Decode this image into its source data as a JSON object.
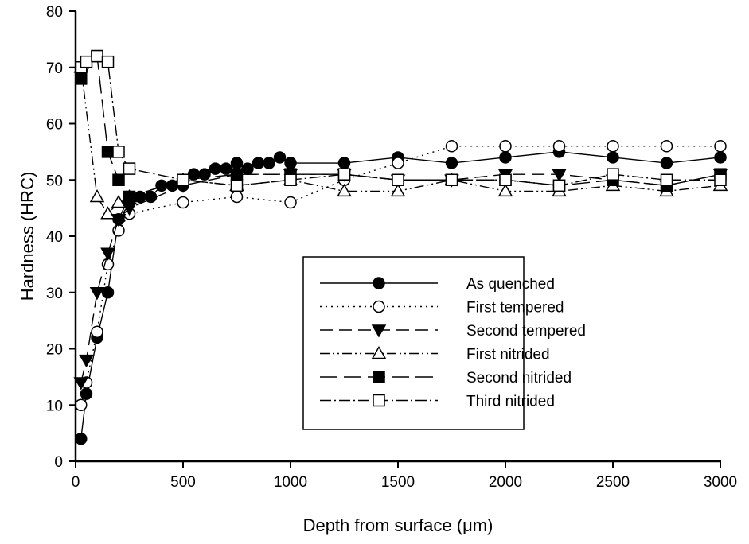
{
  "chart_data": {
    "type": "line",
    "title": "",
    "xlabel": "Depth from surface (μm)",
    "ylabel": "Hardness (HRC)",
    "xlim": [
      0,
      3000
    ],
    "ylim": [
      0,
      80
    ],
    "xticks": [
      0,
      500,
      1000,
      1500,
      2000,
      2500,
      3000
    ],
    "yticks": [
      0,
      10,
      20,
      30,
      40,
      50,
      60,
      70,
      80
    ],
    "grid": false,
    "legend_position": "center-right",
    "series": [
      {
        "name": "As quenched",
        "marker": "filled-circle",
        "dash": "",
        "x": [
          25,
          50,
          100,
          150,
          200,
          250,
          300,
          350,
          400,
          450,
          500,
          550,
          600,
          650,
          700,
          750,
          800,
          850,
          900,
          950,
          1000,
          1250,
          1500,
          1750,
          2000,
          2250,
          2500,
          2750,
          3000
        ],
        "y": [
          4,
          12,
          22,
          30,
          43,
          47,
          47,
          47,
          49,
          49,
          49,
          51,
          51,
          52,
          52,
          53,
          52,
          53,
          53,
          54,
          53,
          53,
          54,
          53,
          54,
          55,
          54,
          53,
          54
        ]
      },
      {
        "name": "First tempered",
        "marker": "open-circle",
        "dash": "2,5",
        "x": [
          25,
          50,
          100,
          150,
          200,
          250,
          500,
          750,
          1000,
          1250,
          1500,
          1750,
          2000,
          2250,
          2500,
          2750,
          3000
        ],
        "y": [
          10,
          14,
          23,
          35,
          41,
          44,
          46,
          47,
          46,
          50,
          53,
          56,
          56,
          56,
          56,
          56,
          56
        ]
      },
      {
        "name": "Second tempered",
        "marker": "filled-triangle-down",
        "dash": "16,8",
        "x": [
          25,
          50,
          100,
          150,
          200,
          250,
          500,
          750,
          1000,
          1250,
          1500,
          1750,
          2000,
          2250,
          2500,
          2750,
          3000
        ],
        "y": [
          14,
          18,
          30,
          37,
          43,
          45,
          49,
          51,
          51,
          51,
          50,
          50,
          51,
          51,
          50,
          49,
          51
        ]
      },
      {
        "name": "First nitrided",
        "marker": "open-triangle-up",
        "dash": "12,4,2,4,2,4",
        "x": [
          25,
          100,
          150,
          200,
          250,
          500,
          750,
          1000,
          1250,
          1500,
          1750,
          2000,
          2250,
          2500,
          2750,
          3000
        ],
        "y": [
          70,
          47,
          44,
          46,
          47,
          50,
          49,
          50,
          48,
          48,
          50,
          48,
          48,
          49,
          48,
          49
        ]
      },
      {
        "name": "Second nitrided",
        "marker": "filled-square",
        "dash": "22,8",
        "x": [
          25,
          100,
          150,
          200,
          250,
          500,
          750,
          1000,
          1250,
          1500,
          1750,
          2000,
          2250,
          2500,
          2750,
          3000
        ],
        "y": [
          68,
          72,
          55,
          50,
          47,
          50,
          51,
          51,
          51,
          50,
          50,
          50,
          49,
          50,
          49,
          51
        ]
      },
      {
        "name": "Third nitrided",
        "marker": "open-square",
        "dash": "14,4,2,4",
        "x": [
          25,
          50,
          100,
          150,
          200,
          250,
          500,
          750,
          1000,
          1250,
          1500,
          1750,
          2000,
          2250,
          2500,
          2750,
          3000
        ],
        "y": [
          70,
          71,
          72,
          71,
          55,
          52,
          50,
          49,
          50,
          51,
          50,
          50,
          50,
          49,
          51,
          50,
          50
        ]
      }
    ]
  }
}
